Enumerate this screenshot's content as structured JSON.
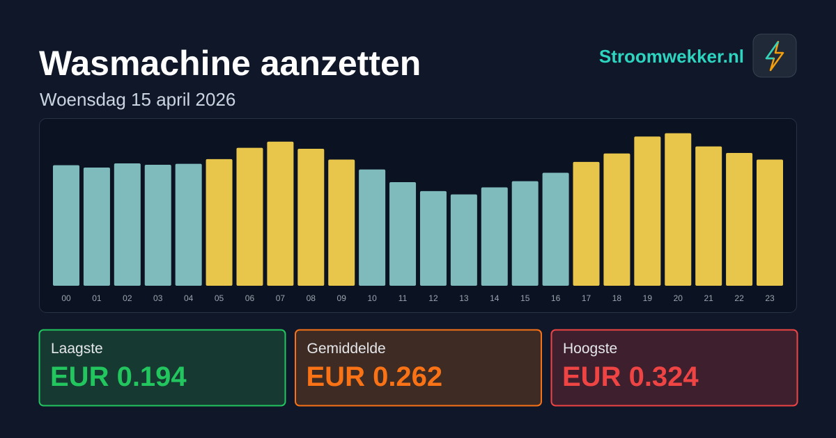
{
  "header": {
    "title": "Wasmachine aanzetten",
    "subtitle": "Woensdag 15 april 2026",
    "brand": "Stroomwekker.nl"
  },
  "chart_data": {
    "type": "bar",
    "categories": [
      "00",
      "01",
      "02",
      "03",
      "04",
      "05",
      "06",
      "07",
      "08",
      "09",
      "10",
      "11",
      "12",
      "13",
      "14",
      "15",
      "16",
      "17",
      "18",
      "19",
      "20",
      "21",
      "22",
      "23"
    ],
    "values": [
      0.256,
      0.251,
      0.26,
      0.257,
      0.259,
      0.269,
      0.293,
      0.306,
      0.291,
      0.268,
      0.247,
      0.22,
      0.201,
      0.194,
      0.209,
      0.222,
      0.24,
      0.263,
      0.281,
      0.317,
      0.324,
      0.296,
      0.282,
      0.268
    ],
    "colors": [
      "#7fbbbc",
      "#7fbbbc",
      "#7fbbbc",
      "#7fbbbc",
      "#7fbbbc",
      "#e8c64b",
      "#e8c64b",
      "#e8c64b",
      "#e8c64b",
      "#e8c64b",
      "#7fbbbc",
      "#7fbbbc",
      "#7fbbbc",
      "#7fbbbc",
      "#7fbbbc",
      "#7fbbbc",
      "#7fbbbc",
      "#e8c64b",
      "#e8c64b",
      "#e8c64b",
      "#e8c64b",
      "#e8c64b",
      "#e8c64b",
      "#e8c64b"
    ],
    "ylim": [
      0,
      0.35
    ]
  },
  "stats": [
    {
      "label": "Laagste",
      "value": "EUR 0.194"
    },
    {
      "label": "Gemiddelde",
      "value": "EUR 0.262"
    },
    {
      "label": "Hoogste",
      "value": "EUR 0.324"
    }
  ]
}
